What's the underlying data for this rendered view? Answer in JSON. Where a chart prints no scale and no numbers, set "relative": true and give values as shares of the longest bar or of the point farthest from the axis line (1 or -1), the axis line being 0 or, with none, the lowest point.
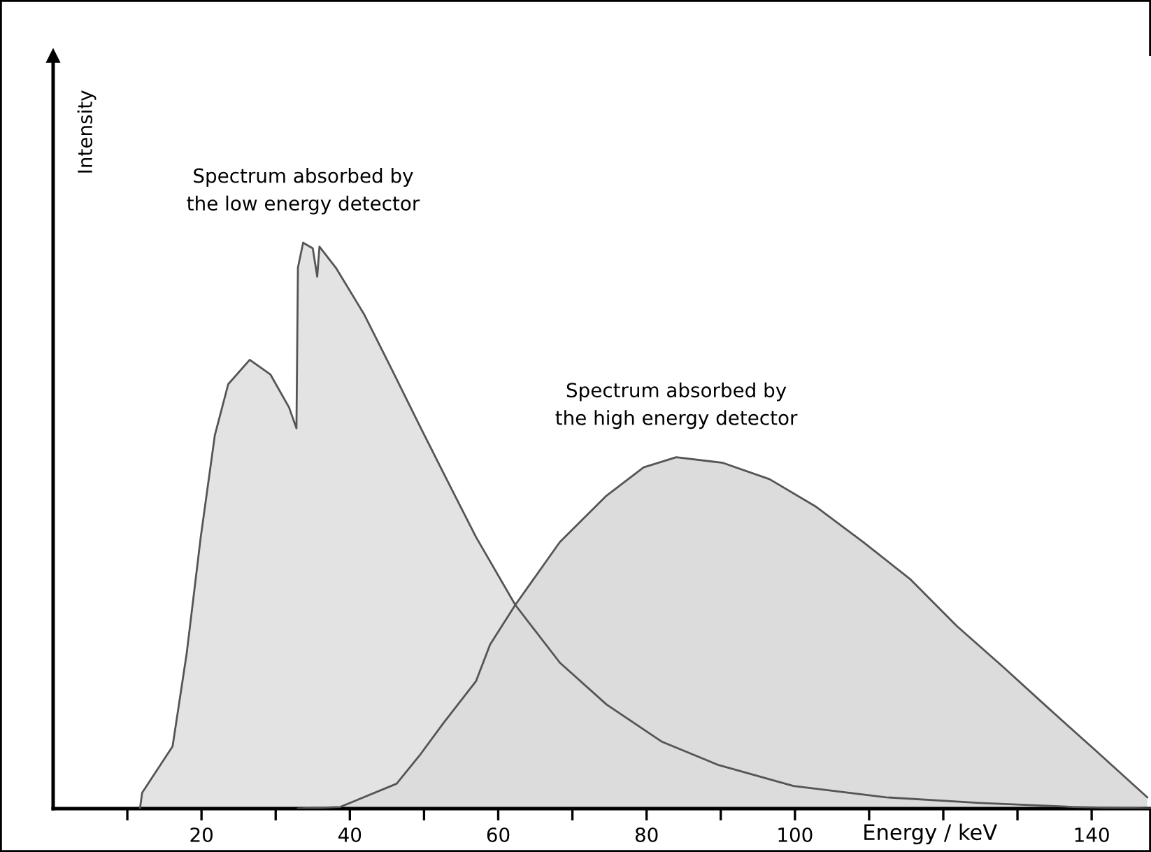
{
  "chart_data": {
    "type": "area",
    "relative": true,
    "xlabel": "Energy / keV",
    "ylabel": "Intensity",
    "xlim": [
      0,
      148
    ],
    "xticks": [
      {
        "value": 10,
        "label": null
      },
      20,
      {
        "value": 30,
        "label": null
      },
      40,
      {
        "value": 50,
        "label": null
      },
      60,
      {
        "value": 70,
        "label": null
      },
      80,
      {
        "value": 90,
        "label": null
      },
      100,
      {
        "value": 110,
        "label": null
      },
      {
        "value": 120,
        "label": null
      },
      {
        "value": 130,
        "label": null
      },
      140
    ],
    "grid": false,
    "legend": false,
    "series": [
      {
        "name": "Spectrum absorbed by\nthe low energy detector",
        "color": "#e3e3e3",
        "x": [
          11.7,
          12.0,
          16.1,
          18.0,
          19.9,
          21.8,
          23.6,
          26.5,
          29.3,
          31.8,
          32.8,
          33.0,
          33.7,
          35.0,
          35.6,
          35.9,
          38.1,
          41.9,
          45.7,
          49.4,
          53.2,
          57.0,
          62.3,
          68.3,
          74.6,
          82.1,
          89.7,
          99.8,
          112.3,
          124.9,
          137.5,
          148
        ],
        "values": [
          0,
          0.028,
          0.11,
          0.274,
          0.48,
          0.66,
          0.75,
          0.793,
          0.767,
          0.709,
          0.672,
          0.956,
          1.0,
          0.99,
          0.94,
          0.993,
          0.956,
          0.874,
          0.775,
          0.677,
          0.578,
          0.48,
          0.36,
          0.258,
          0.184,
          0.118,
          0.077,
          0.04,
          0.02,
          0.01,
          0.003,
          0
        ]
      },
      {
        "name": "Spectrum absorbed by\nthe high energy detector",
        "color": "#dcdcdc",
        "x": [
          33,
          38.7,
          46.3,
          49.4,
          52.6,
          57.0,
          58.9,
          62.3,
          68.3,
          74.6,
          79.6,
          84.0,
          90.3,
          96.6,
          102.9,
          109.2,
          115.5,
          121.8,
          128.1,
          134.3,
          140.6,
          147.5
        ],
        "values": [
          0,
          0.003,
          0.044,
          0.094,
          0.151,
          0.225,
          0.29,
          0.36,
          0.471,
          0.553,
          0.603,
          0.621,
          0.611,
          0.582,
          0.533,
          0.471,
          0.406,
          0.323,
          0.25,
          0.176,
          0.102,
          0.02
        ]
      }
    ]
  }
}
